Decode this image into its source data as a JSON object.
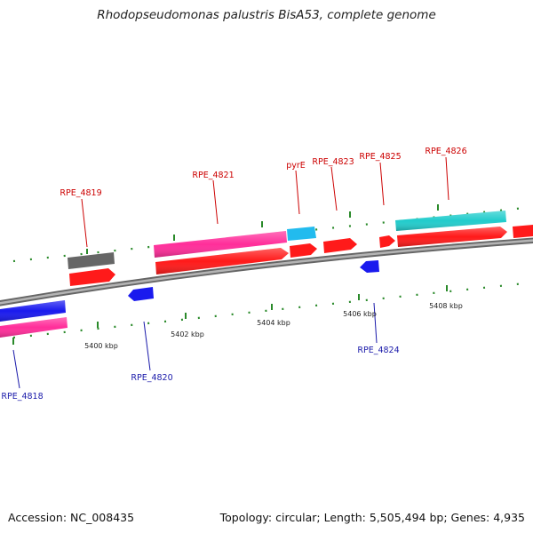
{
  "title": "Rhodopseudomonas palustris BisA53, complete genome",
  "accession_text": "Accession: NC_008435",
  "topology_text": "Topology: circular; Length: 5,505,494 bp; Genes: 4,935",
  "colors": {
    "backbone": "#8a8a8a",
    "forward_label": "#cc0000",
    "reverse_label": "#1a1aaa",
    "tick": "#2a8a2a",
    "cds": "#ff1a1a",
    "rna_pink": "#ff2e9a",
    "rna_cyan": "#22cccc",
    "rna_sky": "#22bbee",
    "gene_gray": "#666666",
    "reverse_cds": "#1a1aee"
  },
  "scale": {
    "labels": [
      "5400 kbp",
      "5402 kbp",
      "5404 kbp",
      "5406 kbp",
      "5408 kbp"
    ]
  },
  "genes": [
    {
      "name": "RPE_4818",
      "strand": "reverse"
    },
    {
      "name": "RPE_4819",
      "strand": "forward"
    },
    {
      "name": "RPE_4820",
      "strand": "reverse"
    },
    {
      "name": "RPE_4821",
      "strand": "forward"
    },
    {
      "name": "pyrE",
      "strand": "forward"
    },
    {
      "name": "RPE_4823",
      "strand": "forward"
    },
    {
      "name": "RPE_4824",
      "strand": "reverse"
    },
    {
      "name": "RPE_4825",
      "strand": "forward"
    },
    {
      "name": "RPE_4826",
      "strand": "forward"
    }
  ]
}
